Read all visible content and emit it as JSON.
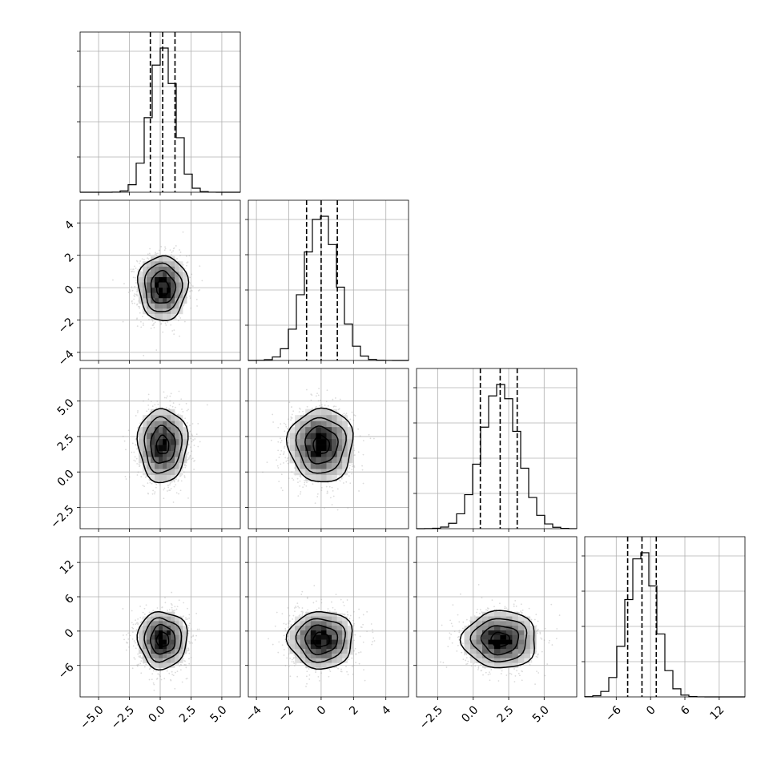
{
  "chart_data": {
    "type": "corner",
    "grid": true,
    "parameters": [
      {
        "index": 0,
        "mean": 0.2,
        "sd": 1.0,
        "range": [
          -6.5,
          6.5
        ],
        "quantiles": [
          -0.8,
          0.2,
          1.2
        ],
        "ticks": [
          -5.0,
          -2.5,
          0.0,
          2.5,
          5.0
        ],
        "tick_labels": [
          "−5.0",
          "−2.5",
          "0.0",
          "2.5",
          "5.0"
        ]
      },
      {
        "index": 1,
        "mean": 0.0,
        "sd": 1.0,
        "range": [
          -4.5,
          5.4
        ],
        "quantiles": [
          -0.9,
          0.0,
          1.0
        ],
        "ticks": [
          -4,
          -2,
          0,
          2,
          4
        ],
        "tick_labels": [
          "−4",
          "−2",
          "0",
          "2",
          "4"
        ]
      },
      {
        "index": 2,
        "mean": 1.9,
        "sd": 1.3,
        "range": [
          -4.0,
          7.3
        ],
        "quantiles": [
          0.5,
          1.9,
          3.1
        ],
        "ticks": [
          -2.5,
          0.0,
          2.5,
          5.0
        ],
        "tick_labels": [
          "−2.5",
          "0.0",
          "2.5",
          "5.0"
        ]
      },
      {
        "index": 3,
        "mean": -1.5,
        "sd": 2.5,
        "range": [
          -11.5,
          16.5
        ],
        "quantiles": [
          -4.0,
          -1.5,
          1.0
        ],
        "ticks": [
          -6,
          0,
          6,
          12
        ],
        "tick_labels": [
          "−6",
          "0",
          "6",
          "12"
        ]
      }
    ],
    "histograms": [
      {
        "param": 0,
        "bins": 20,
        "ymax": 1.0
      },
      {
        "param": 1,
        "bins": 20,
        "ymax": 1.0
      },
      {
        "param": 2,
        "bins": 20,
        "ymax": 1.0
      },
      {
        "param": 3,
        "bins": 20,
        "ymax": 1.0
      }
    ],
    "pairs": [
      {
        "x": 0,
        "y": 1,
        "rho": 0.0
      },
      {
        "x": 0,
        "y": 2,
        "rho": 0.0
      },
      {
        "x": 1,
        "y": 2,
        "rho": 0.0
      },
      {
        "x": 0,
        "y": 3,
        "rho": 0.0
      },
      {
        "x": 1,
        "y": 3,
        "rho": 0.0
      },
      {
        "x": 2,
        "y": 3,
        "rho": 0.0
      }
    ],
    "contour_levels_sigma": [
      0.5,
      1.0,
      1.5,
      2.0
    ],
    "n_samples_scatter": 1400,
    "colors": {
      "scatter": "#9a9a9a",
      "line": "#000000",
      "density_dark": "#000000"
    }
  }
}
